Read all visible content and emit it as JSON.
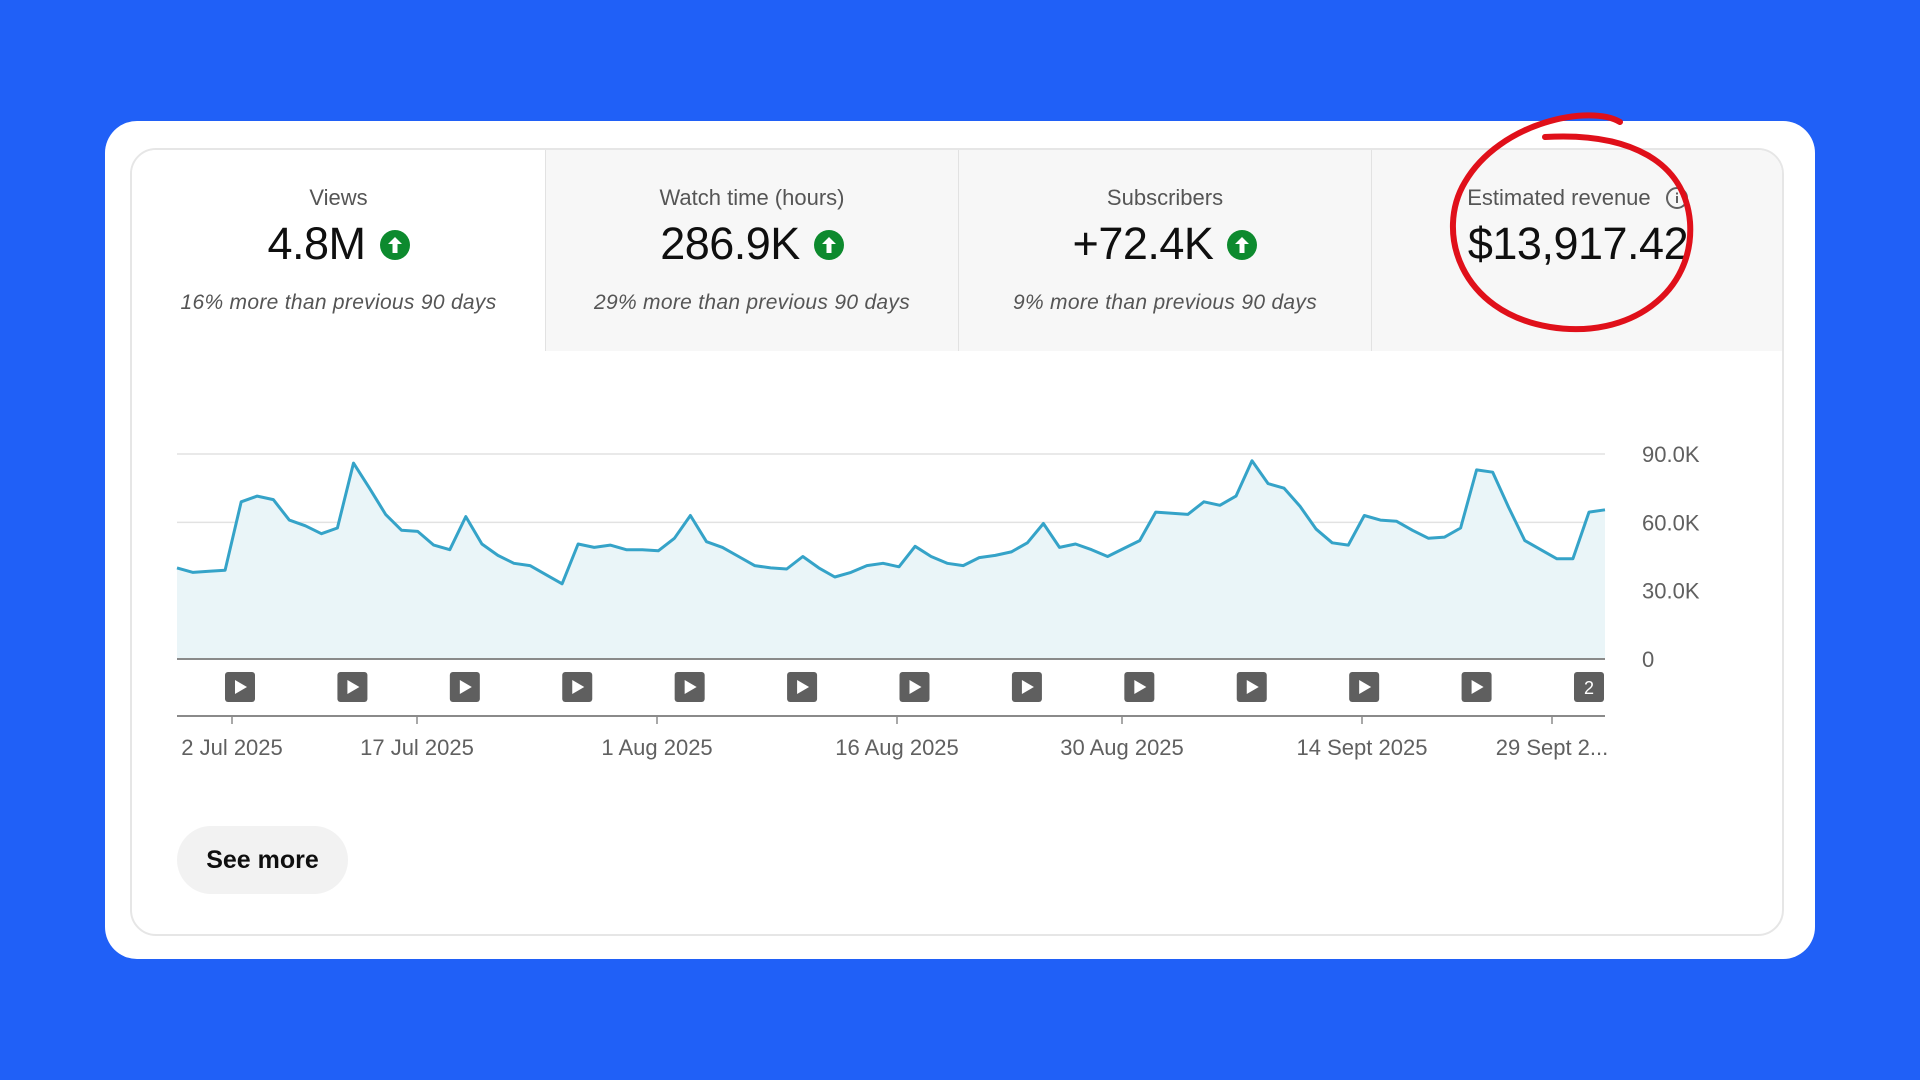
{
  "metrics": [
    {
      "label": "Views",
      "value": "4.8M",
      "trend": "up",
      "comparison": "16% more than previous 90 days"
    },
    {
      "label": "Watch time (hours)",
      "value": "286.9K",
      "trend": "up",
      "comparison": "29% more than previous 90 days"
    },
    {
      "label": "Subscribers",
      "value": "+72.4K",
      "trend": "up",
      "comparison": "9% more than previous 90 days"
    },
    {
      "label": "Estimated revenue",
      "value": "$13,917.42",
      "trend": "none",
      "comparison": ""
    }
  ],
  "icons": {
    "trend_up": "arrow-up-circle-icon",
    "info": "info-circle-icon",
    "video_marker": "play-icon"
  },
  "colors": {
    "background": "#2060f7",
    "trend_up": "#0d8a2e",
    "line": "#35a3c8",
    "area_fill": "#eaf5f8",
    "annotation": "#e0101a"
  },
  "chart_data": {
    "type": "area",
    "x_ticks": [
      "2 Jul 2025",
      "17 Jul 2025",
      "1 Aug 2025",
      "16 Aug 2025",
      "30 Aug 2025",
      "14 Sept 2025",
      "29 Sept 2..."
    ],
    "y_ticks": [
      "90.0K",
      "60.0K",
      "30.0K",
      "0"
    ],
    "ylim": [
      0,
      90000
    ],
    "grid": true,
    "series": [
      {
        "x_start": "2 Jul 2025",
        "x_end": "29 Sept 2025",
        "values": [
          40000,
          38000,
          38500,
          39000,
          69000,
          71500,
          70000,
          61000,
          58500,
          55000,
          57500,
          86000,
          75000,
          63500,
          56500,
          56000,
          50000,
          48000,
          62500,
          50500,
          45500,
          42000,
          41000,
          37000,
          33000,
          50500,
          49000,
          50000,
          48000,
          48000,
          47500,
          53000,
          63000,
          51500,
          49000,
          45000,
          41000,
          40000,
          39500,
          45000,
          40000,
          36000,
          38000,
          41000,
          42000,
          40500,
          49500,
          45000,
          42000,
          41000,
          44500,
          45500,
          47000,
          51000,
          59500,
          49000,
          50500,
          48000,
          45000,
          48500,
          52000,
          64500,
          64000,
          63500,
          69000,
          67500,
          71500,
          87000,
          77000,
          75000,
          67000,
          57000,
          51000,
          50000,
          63000,
          61000,
          60500,
          56500,
          53000,
          53500,
          57500,
          83000,
          82000,
          66500,
          52000,
          48000,
          44000,
          44000,
          64500,
          65500
        ]
      }
    ],
    "video_markers": {
      "count": 13,
      "last_marker_label": "2"
    }
  },
  "see_more": {
    "label": "See more"
  }
}
